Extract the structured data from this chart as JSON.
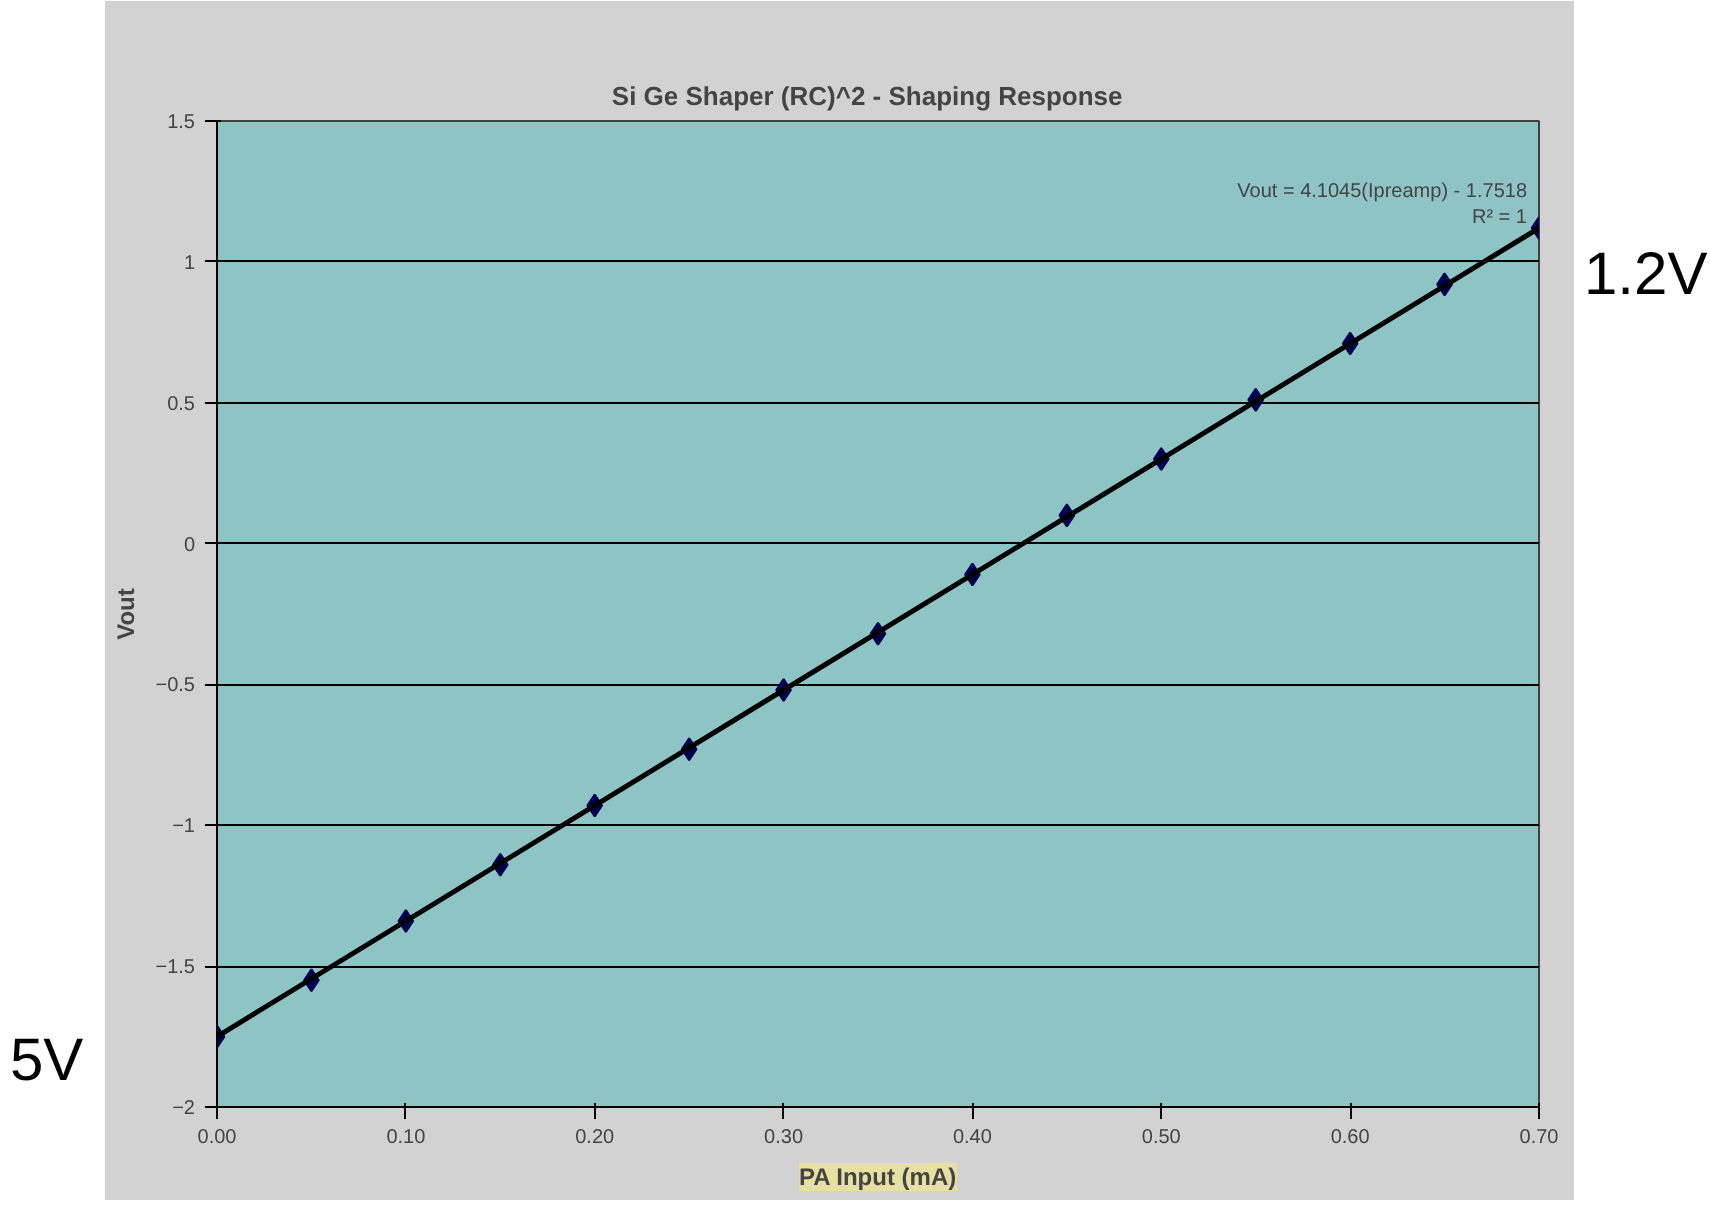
{
  "chart_data": {
    "type": "scatter",
    "title": "Si Ge Shaper  (RC)^2  -  Shaping Response",
    "xlabel": "PA Input (mA)",
    "ylabel": "Vout",
    "x": [
      0,
      0.05,
      0.1,
      0.15,
      0.2,
      0.25,
      0.3,
      0.35,
      0.4,
      0.45,
      0.5,
      0.55,
      0.6,
      0.65,
      0.7
    ],
    "series": [
      {
        "color": "#000050",
        "values": [
          -1.75,
          -1.55,
          -1.34,
          -1.14,
          -0.93,
          -0.73,
          -0.52,
          -0.32,
          -0.11,
          0.1,
          0.3,
          0.51,
          0.71,
          0.92,
          1.12
        ]
      },
      {
        "type": "line",
        "marker": "none",
        "color": "#000000",
        "x": [
          0,
          0.7
        ],
        "values": [
          -1.75,
          1.12
        ]
      }
    ],
    "marker": "diamond",
    "line_style": "solid",
    "xlim": [
      0,
      0.7
    ],
    "ylim": [
      -2,
      1.5
    ],
    "xticks": [
      {
        "value": 0,
        "label": "0.00"
      },
      {
        "value": 0.1,
        "label": "0.10"
      },
      {
        "value": 0.2,
        "label": "0.20"
      },
      {
        "value": 0.3,
        "label": "0.30"
      },
      {
        "value": 0.4,
        "label": "0.40"
      },
      {
        "value": 0.5,
        "label": "0.50"
      },
      {
        "value": 0.6,
        "label": "0.60"
      },
      {
        "value": 0.7,
        "label": "0.70"
      }
    ],
    "yticks": [
      -2,
      -1.5,
      -1,
      -0.5,
      0,
      0.5,
      1,
      1.5
    ],
    "grid": "y",
    "annotations": [
      "Vout = 4.1045(Ipreamp) - 1.7518\nR² = 1",
      "1.2V",
      "5V"
    ]
  }
}
